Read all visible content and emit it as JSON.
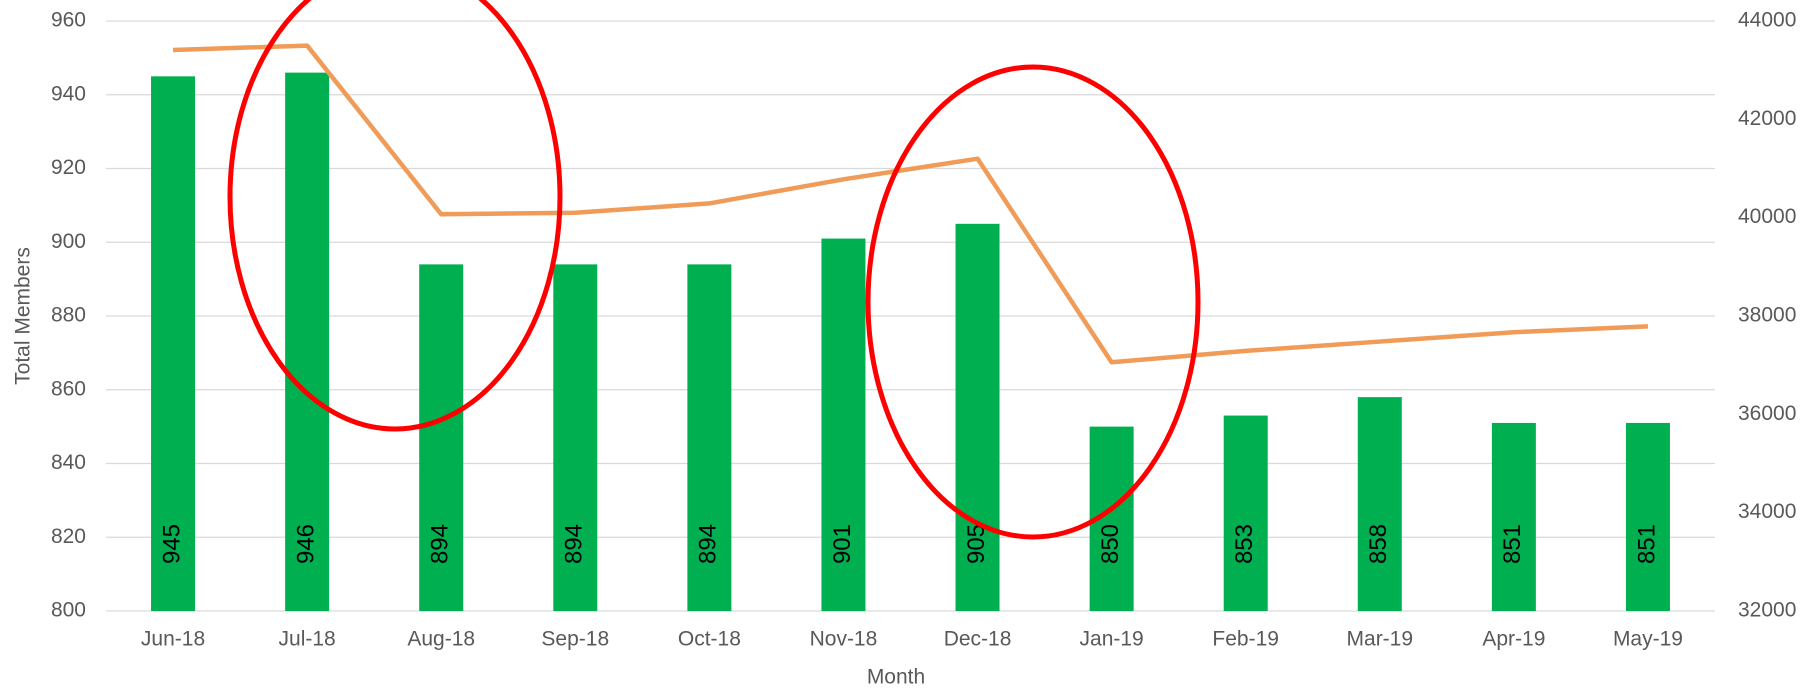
{
  "chart_data": {
    "type": "bar_line",
    "categories": [
      "Jun-18",
      "Jul-18",
      "Aug-18",
      "Sep-18",
      "Oct-18",
      "Nov-18",
      "Dec-18",
      "Jan-19",
      "Feb-19",
      "Mar-19",
      "Apr-19",
      "May-19"
    ],
    "series": [
      {
        "type": "bar",
        "color": "#00b050",
        "values": [
          945,
          946,
          894,
          894,
          894,
          901,
          905,
          850,
          853,
          858,
          851,
          851
        ]
      },
      {
        "type": "line",
        "color": "#f09b58",
        "axis": "y2",
        "values": [
          43410,
          43500,
          40070,
          40100,
          40290,
          40780,
          41200,
          37060,
          37290,
          37480,
          37670,
          37790
        ]
      }
    ],
    "xlabel": "Month",
    "ylabel": "Total Members",
    "ylim": [
      800,
      960
    ],
    "yticks": [
      800,
      820,
      840,
      860,
      880,
      900,
      920,
      940,
      960
    ],
    "y2lim": [
      32000,
      44000
    ],
    "y2ticks": [
      32000,
      34000,
      36000,
      38000,
      40000,
      42000,
      44000
    ],
    "grid": true
  }
}
